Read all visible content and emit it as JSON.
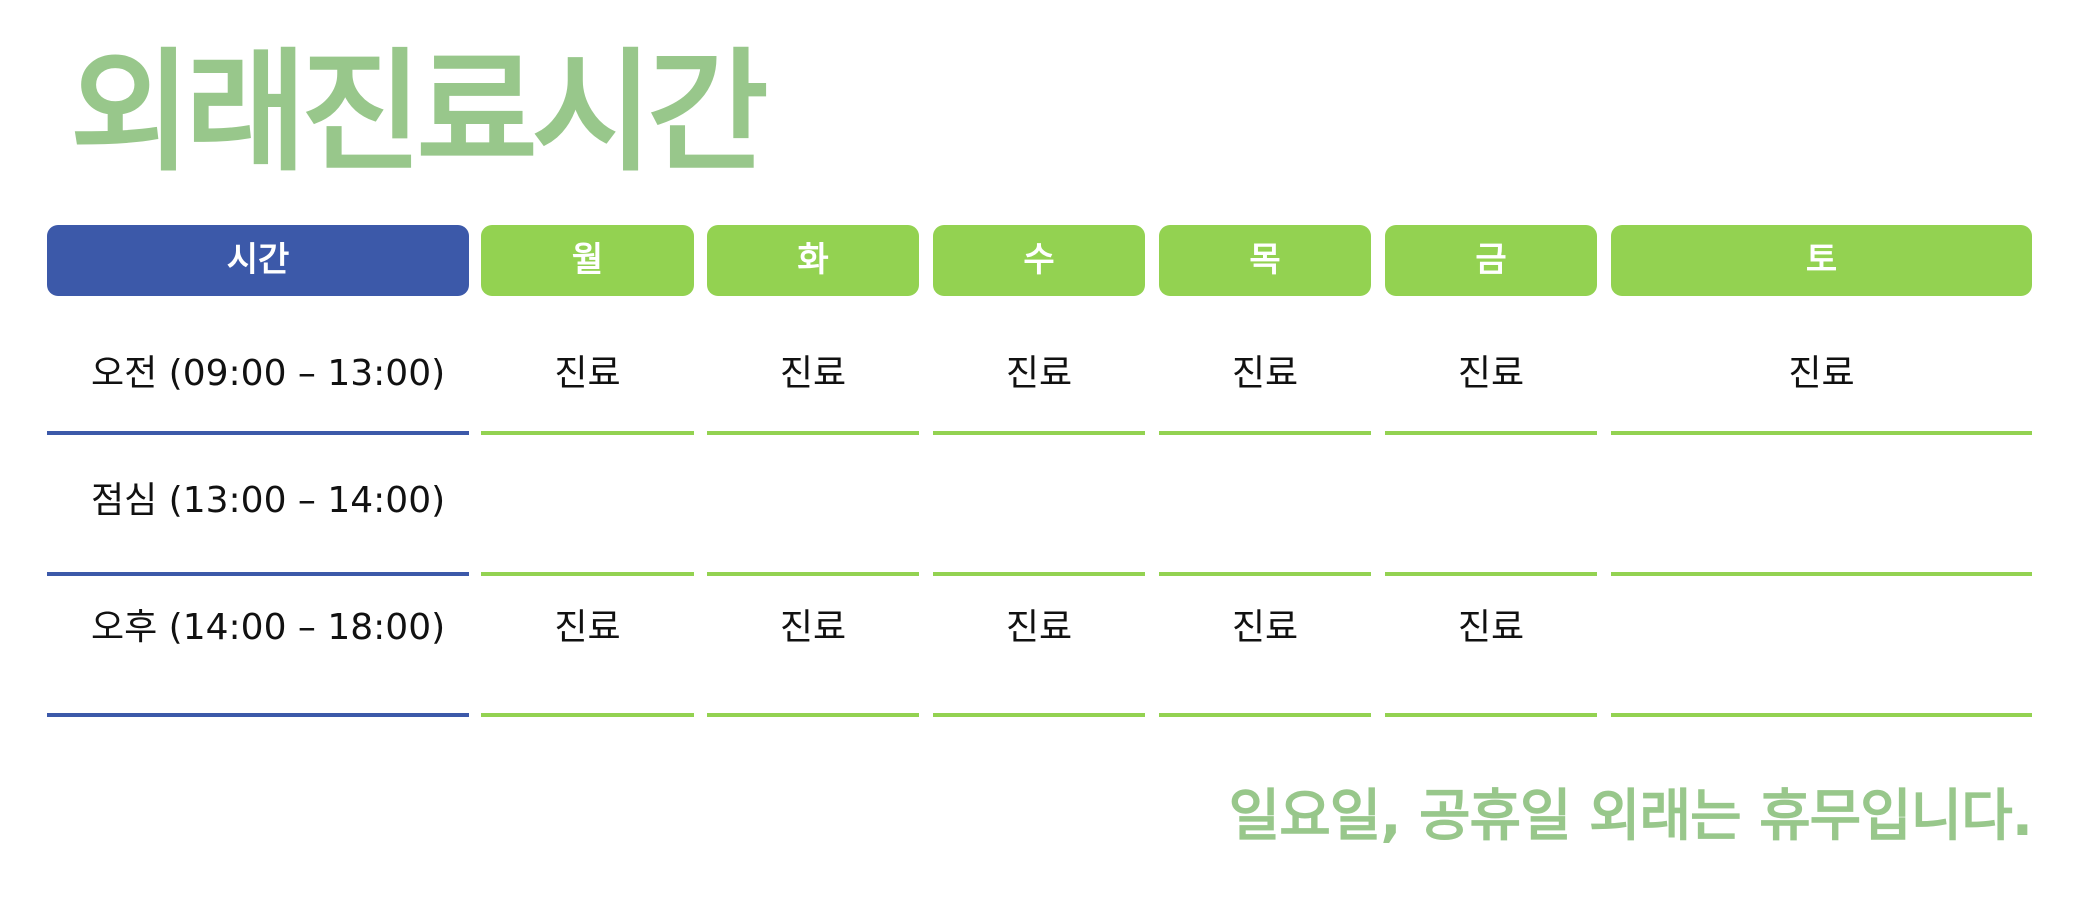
{
  "title": "외래진료시간",
  "colors": {
    "title": "#98c78b",
    "time_header_bg": "#3c59a9",
    "day_header_bg": "#93d251",
    "time_line": "#3c59a9",
    "day_line": "#93d251",
    "footnote": "#98c78b"
  },
  "header": {
    "time": "시간",
    "days": [
      "월",
      "화",
      "수",
      "목",
      "금",
      "토"
    ]
  },
  "rows": [
    {
      "label": "오전 (09:00 – 13:00)",
      "cells": [
        "진료",
        "진료",
        "진료",
        "진료",
        "진료",
        "진료"
      ]
    },
    {
      "label": "점심 (13:00 – 14:00)",
      "cells": [
        "",
        "",
        "",
        "",
        "",
        ""
      ]
    },
    {
      "label": "오후 (14:00 – 18:00)",
      "cells": [
        "진료",
        "진료",
        "진료",
        "진료",
        "진료",
        ""
      ]
    }
  ],
  "footnote": "일요일, 공휴일 외래는 휴무입니다."
}
